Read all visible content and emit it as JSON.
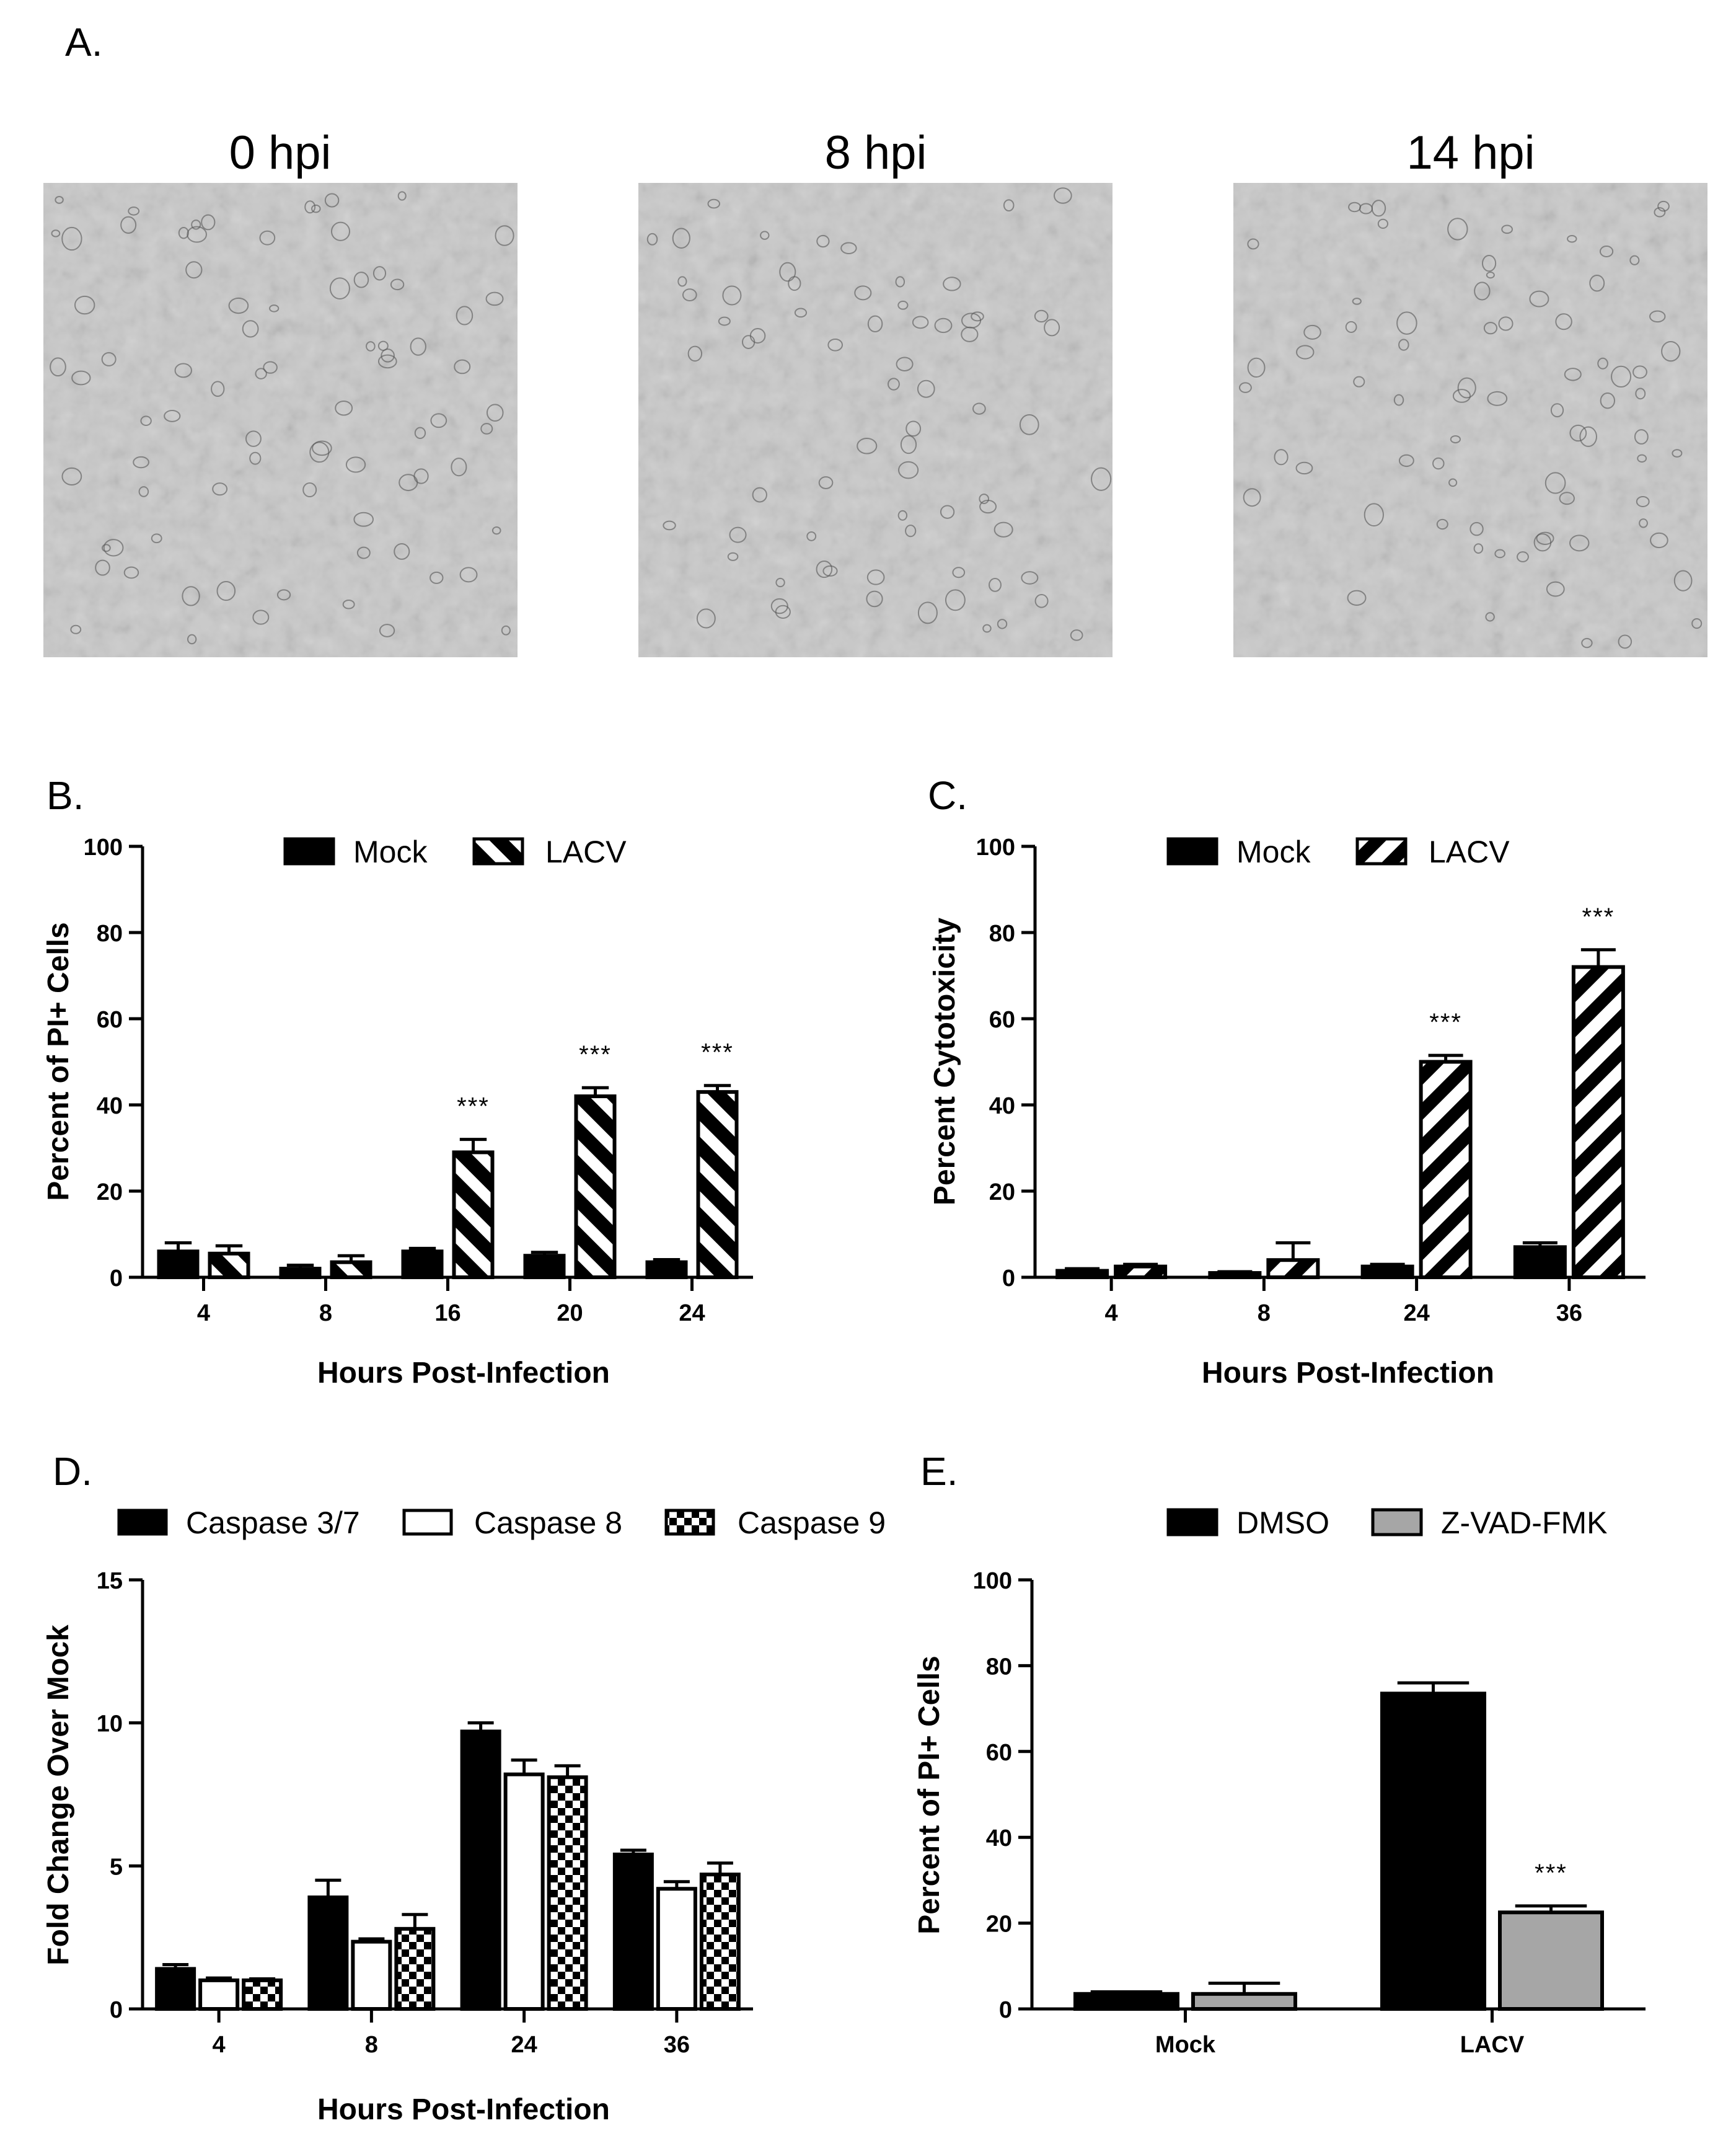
{
  "figure": {
    "panel_a": {
      "label": "A.",
      "images": [
        {
          "title": "0 hpi"
        },
        {
          "title": "8 hpi"
        },
        {
          "title": "14 hpi"
        }
      ]
    }
  },
  "colors": {
    "black": "#000000",
    "white": "#ffffff",
    "gray_bar": "#a6a6a6",
    "micrograph_bg": "#c9c9c9"
  },
  "chart_data": [
    {
      "panel": "B.",
      "type": "bar",
      "title": "",
      "xlabel": "Hours Post-Infection",
      "ylabel": "Percent of PI+ Cells",
      "ylim": [
        0,
        100
      ],
      "yticks": [
        0,
        20,
        40,
        60,
        80,
        100
      ],
      "categories": [
        "4",
        "8",
        "16",
        "20",
        "24"
      ],
      "legend_position": "top-center",
      "series": [
        {
          "name": "Mock",
          "pattern": "solid-black",
          "values": [
            6,
            2,
            6,
            5,
            3.5
          ],
          "errors": [
            2,
            0.8,
            0.7,
            0.8,
            0.6
          ]
        },
        {
          "name": "LACV",
          "pattern": "hatch-back",
          "values": [
            5.5,
            3.5,
            29,
            42,
            43
          ],
          "errors": [
            1.8,
            1.5,
            3,
            2,
            1.5
          ]
        }
      ],
      "annotations": [
        {
          "category": "16",
          "series": "LACV",
          "text": "***"
        },
        {
          "category": "20",
          "series": "LACV",
          "text": "***"
        },
        {
          "category": "24",
          "series": "LACV",
          "text": "***"
        }
      ]
    },
    {
      "panel": "C.",
      "type": "bar",
      "title": "",
      "xlabel": "Hours Post-Infection",
      "ylabel": "Percent Cytotoxicity",
      "ylim": [
        0,
        100
      ],
      "yticks": [
        0,
        20,
        40,
        60,
        80,
        100
      ],
      "categories": [
        "4",
        "8",
        "24",
        "36"
      ],
      "legend_position": "top-center",
      "series": [
        {
          "name": "Mock",
          "pattern": "solid-black",
          "values": [
            1.5,
            1,
            2.5,
            7
          ],
          "errors": [
            0.5,
            0.3,
            0.5,
            1
          ]
        },
        {
          "name": "LACV",
          "pattern": "hatch-forward",
          "values": [
            2.5,
            4,
            50,
            72
          ],
          "errors": [
            0.5,
            4,
            1.5,
            4
          ]
        }
      ],
      "annotations": [
        {
          "category": "24",
          "series": "LACV",
          "text": "***"
        },
        {
          "category": "36",
          "series": "LACV",
          "text": "***"
        }
      ]
    },
    {
      "panel": "D.",
      "type": "bar",
      "title": "",
      "xlabel": "Hours Post-Infection",
      "ylabel": "Fold Change Over Mock",
      "ylim": [
        0,
        15
      ],
      "yticks": [
        0,
        5,
        10,
        15
      ],
      "categories": [
        "4",
        "8",
        "24",
        "36"
      ],
      "legend_position": "top",
      "series": [
        {
          "name": "Caspase 3/7",
          "pattern": "solid-black",
          "values": [
            1.4,
            3.9,
            9.7,
            5.4
          ],
          "errors": [
            0.15,
            0.6,
            0.3,
            0.15
          ]
        },
        {
          "name": "Caspase 8",
          "pattern": "white",
          "values": [
            1,
            2.35,
            8.2,
            4.2
          ],
          "errors": [
            0.08,
            0.1,
            0.5,
            0.25
          ]
        },
        {
          "name": "Caspase 9",
          "pattern": "checker",
          "values": [
            1,
            2.8,
            8.1,
            4.7
          ],
          "errors": [
            0.05,
            0.5,
            0.4,
            0.4
          ]
        }
      ],
      "annotations": []
    },
    {
      "panel": "E.",
      "type": "bar",
      "title": "",
      "xlabel": "",
      "ylabel": "Percent of PI+ Cells",
      "ylim": [
        0,
        100
      ],
      "yticks": [
        0,
        20,
        40,
        60,
        80,
        100
      ],
      "categories": [
        "Mock",
        "LACV"
      ],
      "legend_position": "top-center",
      "series": [
        {
          "name": "DMSO",
          "pattern": "solid-black",
          "values": [
            3.5,
            73.5
          ],
          "errors": [
            0.5,
            2.5
          ]
        },
        {
          "name": "Z-VAD-FMK",
          "pattern": "solid-gray",
          "values": [
            3.5,
            22.5
          ],
          "errors": [
            2.5,
            1.5
          ]
        }
      ],
      "annotations": [
        {
          "category": "LACV",
          "series": "Z-VAD-FMK",
          "text": "***"
        }
      ]
    }
  ]
}
